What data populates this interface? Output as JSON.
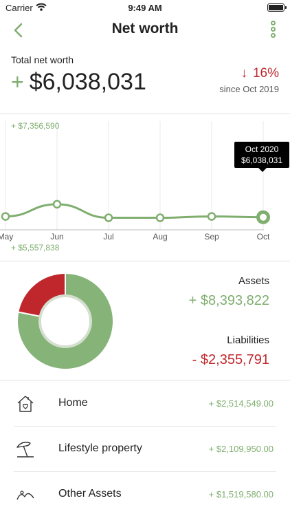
{
  "status_bar": {
    "carrier": "Carrier",
    "time": "9:49 AM"
  },
  "nav": {
    "title": "Net worth",
    "back_icon": "chevron-left-icon",
    "more_icon": "vertical-dots-icon"
  },
  "summary": {
    "label": "Total net worth",
    "sign": "+",
    "total": "$6,038,031",
    "change": "16%",
    "change_arrow": "↓",
    "since": "since Oct 2019",
    "colors": {
      "positive": "#7fae6e",
      "negative": "#c0272d"
    }
  },
  "chart_data": {
    "type": "line",
    "x": [
      "May",
      "Jun",
      "Jul",
      "Aug",
      "Sep",
      "Oct"
    ],
    "series": [
      {
        "values": [
          6050000,
          6230000,
          6030000,
          6030000,
          6050000,
          6038031
        ]
      }
    ],
    "ylim": [
      5557838,
      7356590
    ],
    "max_label": "+ $7,356,590",
    "min_label": "+ $5,557,838",
    "tooltip": {
      "date": "Oct 2020",
      "value": "$6,038,031"
    },
    "grid": true
  },
  "breakdown": {
    "assets_label": "Assets",
    "assets_value": "+ $8,393,822",
    "assets_amount": 8393822,
    "liabilities_label": "Liabilities",
    "liabilities_value": "- $2,355,791",
    "liabilities_amount": 2355791,
    "colors": {
      "assets": "#86b378",
      "liabilities": "#c0272d"
    }
  },
  "categories": [
    {
      "icon": "home-icon",
      "name": "Home",
      "amount": "+ $2,514,549.00"
    },
    {
      "icon": "beach-umbrella-icon",
      "name": "Lifestyle property",
      "amount": "+ $2,109,950.00"
    },
    {
      "icon": "other-assets-icon",
      "name": "Other Assets",
      "amount": "+ $1,519,580.00"
    }
  ]
}
